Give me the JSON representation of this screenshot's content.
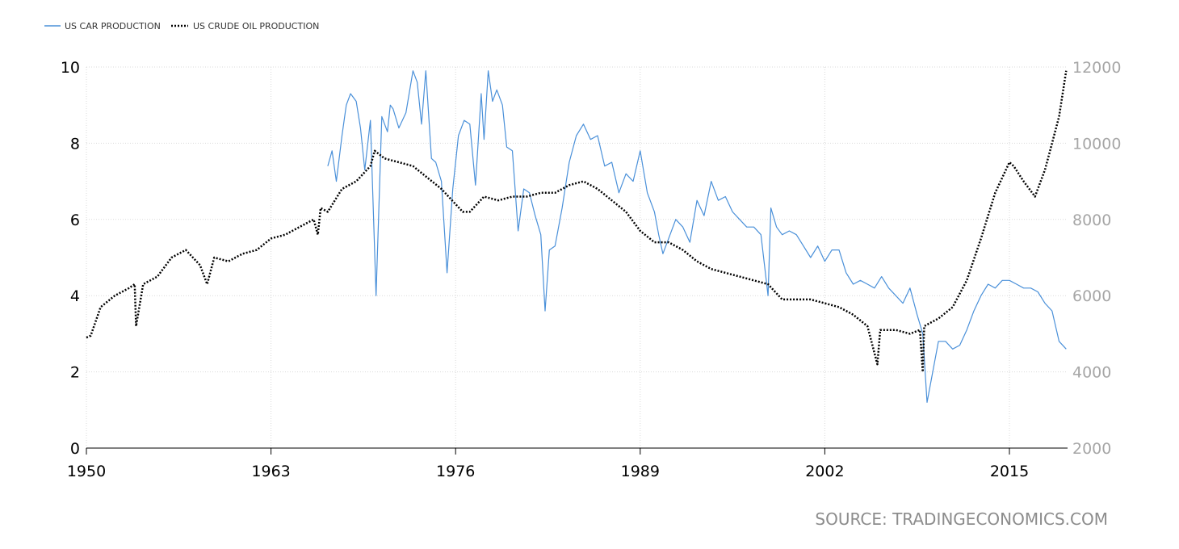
{
  "source": "SOURCE: TRADINGECONOMICS.COM",
  "chart_data": {
    "type": "line",
    "title": "",
    "xlabel": "",
    "xlim": [
      1950,
      2019.1
    ],
    "x_ticks": [
      "1950",
      "1963",
      "1976",
      "1989",
      "2002",
      "2015"
    ],
    "left_axis": {
      "range": [
        0,
        10
      ],
      "ticks": [
        "0",
        "2",
        "4",
        "6",
        "8",
        "10"
      ]
    },
    "right_axis": {
      "range": [
        2000,
        12000
      ],
      "ticks": [
        "2000",
        "4000",
        "6000",
        "8000",
        "10000",
        "12000"
      ]
    },
    "grid": true,
    "legend_position": "top-left",
    "series": [
      {
        "name": "US CAR PRODUCTION",
        "axis": "left",
        "color": "#4a90d9",
        "style": "solid",
        "x": [
          1967.0,
          1967.3,
          1967.6,
          1968.0,
          1968.3,
          1968.6,
          1969.0,
          1969.3,
          1969.6,
          1970.0,
          1970.4,
          1970.8,
          1971.2,
          1971.4,
          1971.6,
          1972.0,
          1972.5,
          1973.0,
          1973.3,
          1973.6,
          1973.9,
          1974.3,
          1974.6,
          1975.0,
          1975.4,
          1975.8,
          1976.2,
          1976.6,
          1977.0,
          1977.4,
          1977.8,
          1978.0,
          1978.3,
          1978.6,
          1978.9,
          1979.3,
          1979.6,
          1980.0,
          1980.4,
          1980.8,
          1981.2,
          1981.6,
          1982.0,
          1982.3,
          1982.6,
          1983.0,
          1983.5,
          1984.0,
          1984.5,
          1985.0,
          1985.5,
          1986.0,
          1986.5,
          1987.0,
          1987.5,
          1988.0,
          1988.5,
          1989.0,
          1989.5,
          1990.0,
          1990.3,
          1990.6,
          1991.0,
          1991.5,
          1992.0,
          1992.5,
          1993.0,
          1993.5,
          1994.0,
          1994.5,
          1995.0,
          1995.5,
          1996.0,
          1996.5,
          1997.0,
          1997.5,
          1998.0,
          1998.2,
          1998.6,
          1999.0,
          1999.5,
          2000.0,
          2000.5,
          2001.0,
          2001.5,
          2002.0,
          2002.5,
          2003.0,
          2003.5,
          2004.0,
          2004.5,
          2005.0,
          2005.5,
          2006.0,
          2006.5,
          2007.0,
          2007.5,
          2008.0,
          2008.5,
          2008.9,
          2009.2,
          2009.5,
          2010.0,
          2010.5,
          2011.0,
          2011.5,
          2012.0,
          2012.5,
          2013.0,
          2013.5,
          2014.0,
          2014.5,
          2015.0,
          2015.5,
          2016.0,
          2016.5,
          2017.0,
          2017.5,
          2018.0,
          2018.5,
          2019.0
        ],
        "values": [
          7.4,
          7.8,
          7.0,
          8.2,
          9.0,
          9.3,
          9.1,
          8.4,
          7.3,
          8.6,
          4.0,
          8.7,
          8.3,
          9.0,
          8.9,
          8.4,
          8.8,
          9.9,
          9.6,
          8.5,
          9.9,
          7.6,
          7.5,
          7.0,
          4.6,
          6.8,
          8.2,
          8.6,
          8.5,
          6.9,
          9.3,
          8.1,
          9.9,
          9.1,
          9.4,
          9.0,
          7.9,
          7.8,
          5.7,
          6.8,
          6.7,
          6.1,
          5.6,
          3.6,
          5.2,
          5.3,
          6.3,
          7.5,
          8.2,
          8.5,
          8.1,
          8.2,
          7.4,
          7.5,
          6.7,
          7.2,
          7.0,
          7.8,
          6.7,
          6.2,
          5.6,
          5.1,
          5.5,
          6.0,
          5.8,
          5.4,
          6.5,
          6.1,
          7.0,
          6.5,
          6.6,
          6.2,
          6.0,
          5.8,
          5.8,
          5.6,
          4.0,
          6.3,
          5.8,
          5.6,
          5.7,
          5.6,
          5.3,
          5.0,
          5.3,
          4.9,
          5.2,
          5.2,
          4.6,
          4.3,
          4.4,
          4.3,
          4.2,
          4.5,
          4.2,
          4.0,
          3.8,
          4.2,
          3.5,
          3.0,
          1.2,
          1.8,
          2.8,
          2.8,
          2.6,
          2.7,
          3.1,
          3.6,
          4.0,
          4.3,
          4.2,
          4.4,
          4.4,
          4.3,
          4.2,
          4.2,
          4.1,
          3.8,
          3.6,
          2.8,
          2.6
        ]
      },
      {
        "name": "US CRUDE OIL PRODUCTION",
        "axis": "right",
        "color": "#000000",
        "style": "dotted",
        "x": [
          1950.0,
          1950.3,
          1951.0,
          1952.0,
          1953.0,
          1953.4,
          1953.5,
          1954.0,
          1955.0,
          1956.0,
          1957.0,
          1958.0,
          1958.5,
          1959.0,
          1960.0,
          1961.0,
          1962.0,
          1963.0,
          1964.0,
          1965.0,
          1966.0,
          1966.3,
          1966.5,
          1967.0,
          1968.0,
          1969.0,
          1970.0,
          1970.3,
          1971.0,
          1972.0,
          1973.0,
          1974.0,
          1975.0,
          1976.0,
          1976.5,
          1977.0,
          1978.0,
          1979.0,
          1980.0,
          1981.0,
          1982.0,
          1983.0,
          1984.0,
          1985.0,
          1986.0,
          1987.0,
          1988.0,
          1989.0,
          1990.0,
          1991.0,
          1992.0,
          1993.0,
          1994.0,
          1995.0,
          1996.0,
          1997.0,
          1998.0,
          1999.0,
          2000.0,
          2001.0,
          2002.0,
          2003.0,
          2004.0,
          2005.0,
          2005.7,
          2005.9,
          2006.0,
          2007.0,
          2008.0,
          2008.7,
          2008.9,
          2009.0,
          2010.0,
          2011.0,
          2012.0,
          2013.0,
          2014.0,
          2015.0,
          2015.3,
          2016.0,
          2016.8,
          2017.0,
          2017.5,
          2018.0,
          2018.5,
          2019.0
        ],
        "values": [
          4900,
          4950,
          5700,
          6000,
          6200,
          6300,
          5200,
          6300,
          6500,
          7000,
          7200,
          6800,
          6300,
          7000,
          6900,
          7100,
          7200,
          7500,
          7600,
          7800,
          8000,
          7600,
          8300,
          8200,
          8800,
          9000,
          9400,
          9800,
          9600,
          9500,
          9400,
          9100,
          8800,
          8400,
          8200,
          8200,
          8600,
          8500,
          8600,
          8600,
          8700,
          8700,
          8900,
          9000,
          8800,
          8500,
          8200,
          7700,
          7400,
          7400,
          7200,
          6900,
          6700,
          6600,
          6500,
          6400,
          6300,
          5900,
          5900,
          5900,
          5800,
          5700,
          5500,
          5200,
          4200,
          5100,
          5100,
          5100,
          5000,
          5100,
          4000,
          5200,
          5400,
          5700,
          6400,
          7500,
          8700,
          9500,
          9400,
          9000,
          8600,
          8800,
          9300,
          10000,
          10700,
          11900
        ]
      }
    ]
  }
}
